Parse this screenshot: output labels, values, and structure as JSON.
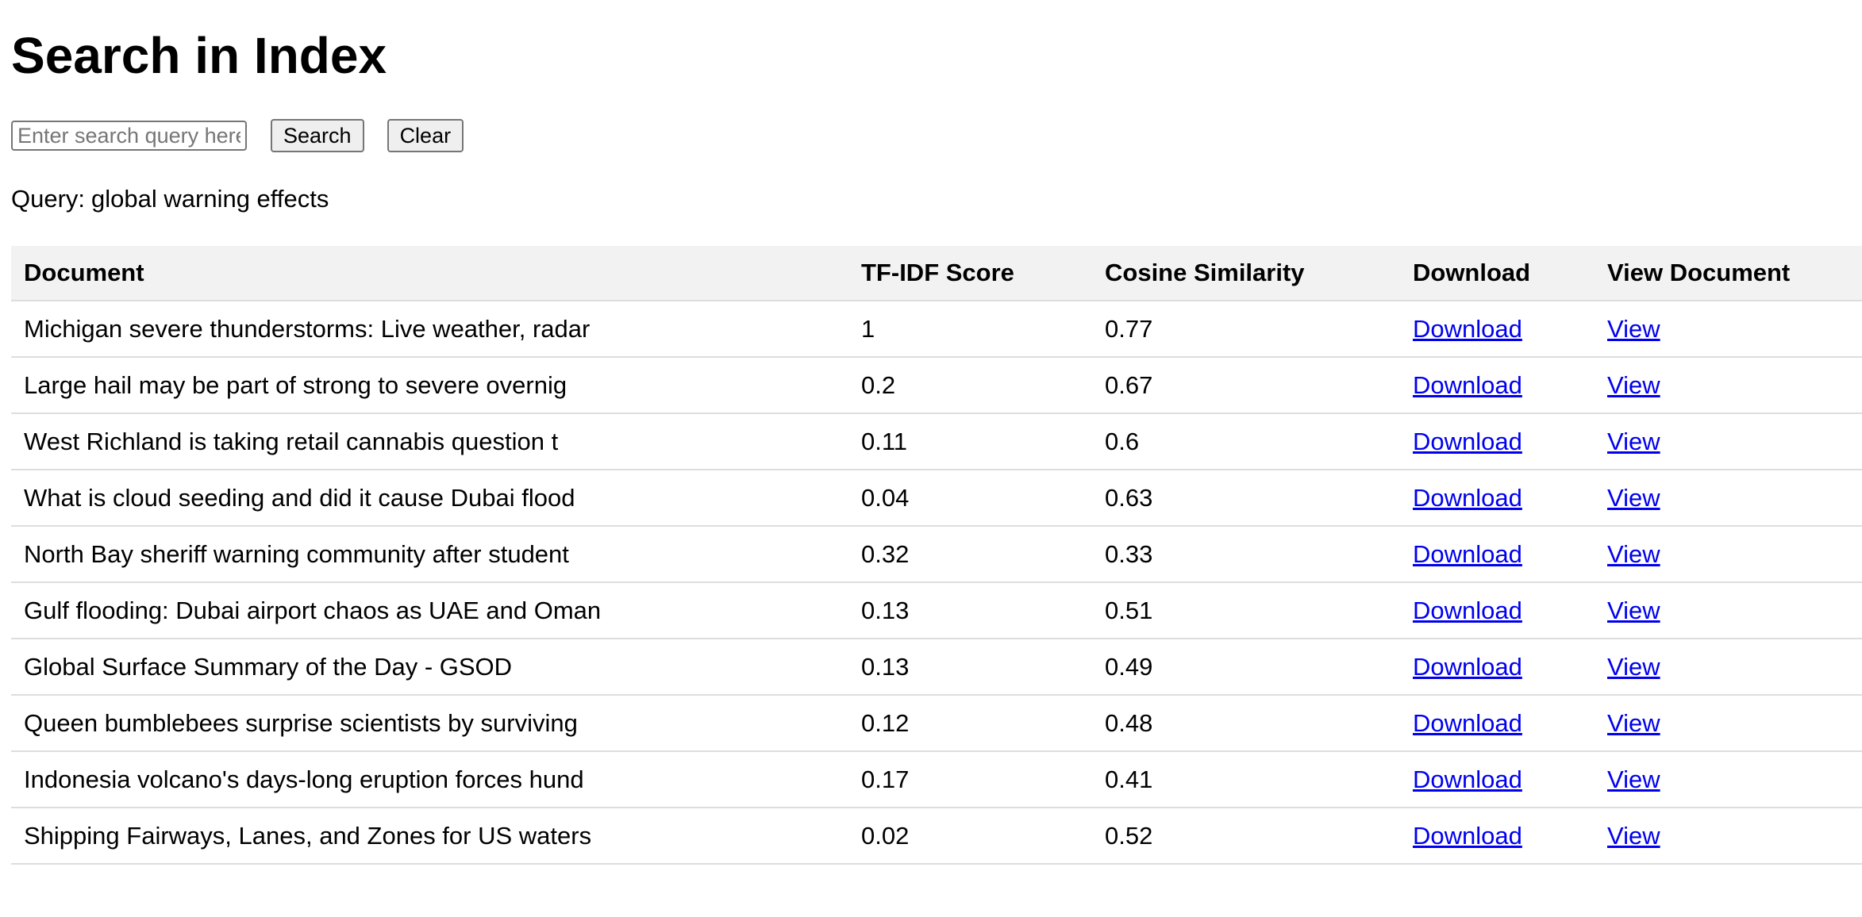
{
  "page": {
    "title": "Search in Index"
  },
  "search": {
    "placeholder": "Enter search query here",
    "value": "",
    "search_label": "Search",
    "clear_label": "Clear"
  },
  "query": {
    "label": "Query:",
    "text": "global warning effects"
  },
  "table": {
    "headers": {
      "document": "Document",
      "tfidf": "TF-IDF Score",
      "cosine": "Cosine Similarity",
      "download": "Download",
      "view": "View Document"
    },
    "rows": [
      {
        "document": "Michigan severe thunderstorms: Live weather, radar",
        "tfidf": "1",
        "cosine": "0.77",
        "download": "Download",
        "view": "View"
      },
      {
        "document": "Large hail may be part of strong to severe overnig",
        "tfidf": "0.2",
        "cosine": "0.67",
        "download": "Download",
        "view": "View"
      },
      {
        "document": "West Richland is taking retail cannabis question t",
        "tfidf": "0.11",
        "cosine": "0.6",
        "download": "Download",
        "view": "View"
      },
      {
        "document": "What is cloud seeding and did it cause Dubai flood",
        "tfidf": "0.04",
        "cosine": "0.63",
        "download": "Download",
        "view": "View"
      },
      {
        "document": "North Bay sheriff warning community after student",
        "tfidf": "0.32",
        "cosine": "0.33",
        "download": "Download",
        "view": "View"
      },
      {
        "document": "Gulf flooding: Dubai airport chaos as UAE and Oman",
        "tfidf": "0.13",
        "cosine": "0.51",
        "download": "Download",
        "view": "View"
      },
      {
        "document": "Global Surface Summary of the Day - GSOD",
        "tfidf": "0.13",
        "cosine": "0.49",
        "download": "Download",
        "view": "View"
      },
      {
        "document": "Queen bumblebees surprise scientists by surviving",
        "tfidf": "0.12",
        "cosine": "0.48",
        "download": "Download",
        "view": "View"
      },
      {
        "document": "Indonesia volcano's days-long eruption forces hund",
        "tfidf": "0.17",
        "cosine": "0.41",
        "download": "Download",
        "view": "View"
      },
      {
        "document": "Shipping Fairways, Lanes, and Zones for US waters",
        "tfidf": "0.02",
        "cosine": "0.52",
        "download": "Download",
        "view": "View"
      }
    ]
  },
  "colors": {
    "link": "#0000ee",
    "header_bg": "#f2f2f2",
    "row_border": "#dddddd",
    "button_bg": "#efefef"
  }
}
